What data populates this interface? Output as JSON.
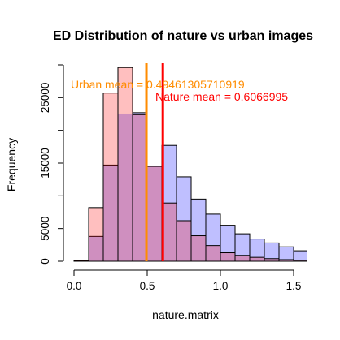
{
  "chart_data": {
    "type": "histogram",
    "title": "ED Distribution of nature vs urban images",
    "xlabel": "nature.matrix",
    "ylabel": "Frequency",
    "xlim": [
      -0.05,
      1.55
    ],
    "ylim": [
      0,
      30000
    ],
    "x_ticks": [
      0.0,
      0.5,
      1.0,
      1.5
    ],
    "x_tick_labels": [
      "0.0",
      "0.5",
      "1.0",
      "1.5"
    ],
    "y_ticks": [
      0,
      5000,
      15000,
      25000
    ],
    "y_tick_labels": [
      "0",
      "5000",
      "15000",
      "25000"
    ],
    "bin_edges": [
      0.0,
      0.1,
      0.2,
      0.3,
      0.4,
      0.5,
      0.6,
      0.7,
      0.8,
      0.9,
      1.0,
      1.1,
      1.2,
      1.3,
      1.4,
      1.5,
      1.6
    ],
    "series": [
      {
        "name": "Nature",
        "color": "#0000ff",
        "values": [
          100,
          3800,
          14700,
          22500,
          22700,
          14500,
          17700,
          12900,
          9500,
          7200,
          5500,
          4200,
          3400,
          2800,
          2200,
          1600
        ]
      },
      {
        "name": "Urban",
        "color": "#ff0000",
        "values": [
          150,
          8200,
          25700,
          29600,
          22400,
          14500,
          8900,
          6200,
          3900,
          2400,
          1300,
          900,
          600,
          400,
          250,
          150
        ]
      }
    ],
    "mean_lines": [
      {
        "label": "Urban mean = 0.49461305710919",
        "value": 0.49461305710919,
        "color": "#ff8c00"
      },
      {
        "label": "Nature mean = 0.6066995",
        "value": 0.6066995,
        "color": "#ff0000"
      }
    ]
  }
}
